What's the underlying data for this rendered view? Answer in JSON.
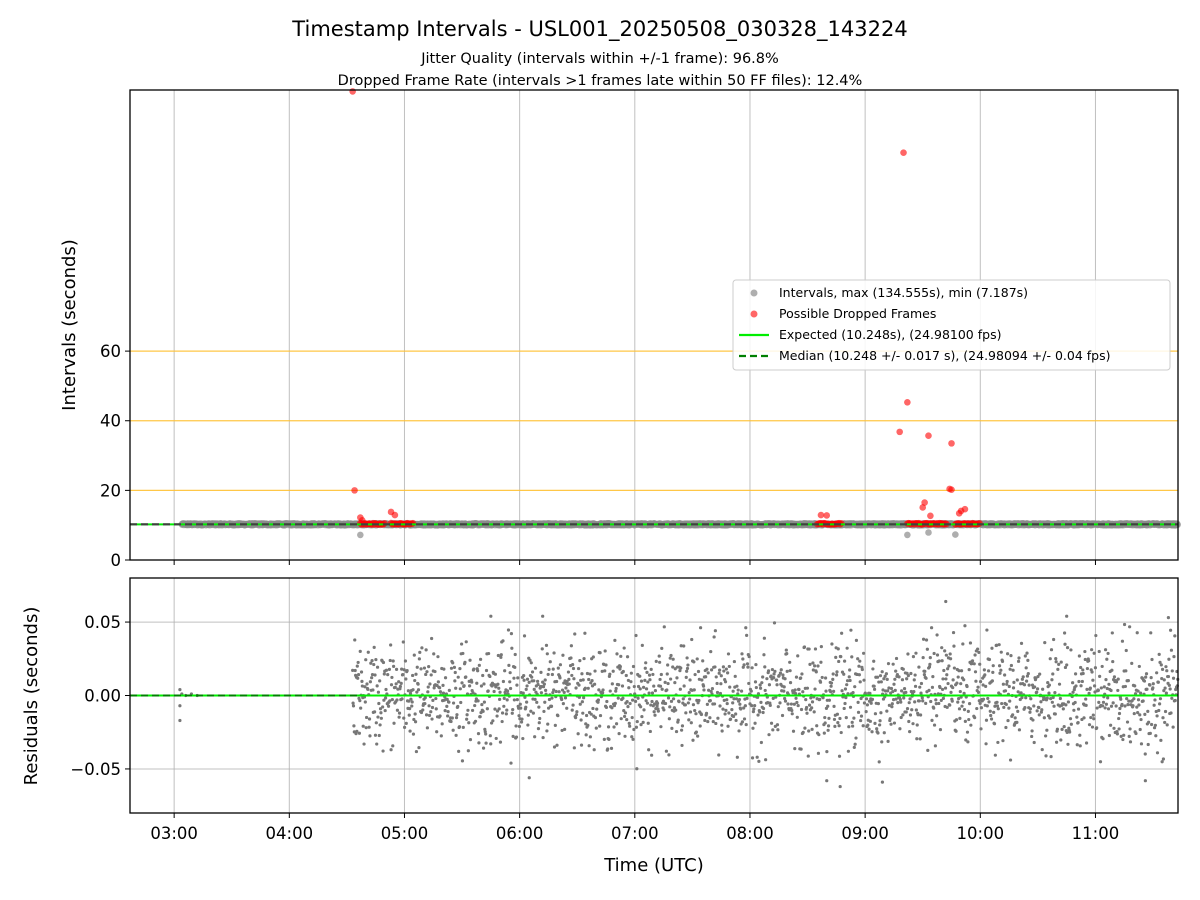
{
  "page": {
    "title": "Timestamp Intervals - USL001_20250508_030328_143224",
    "subtitle_line1": "Jitter Quality (intervals within +/-1 frame): 96.8%",
    "subtitle_line2": "Dropped Frame Rate (intervals >1 frames late within 50 FF files): 12.4%"
  },
  "colors": {
    "intervals": "#8c8c8c",
    "dropped": "#ff0000",
    "expected": "#00ee00",
    "median": "#008000",
    "threshold": "#ffc133",
    "grid": "#b0b0b0",
    "residuals": "#777777"
  },
  "chart_data": [
    {
      "type": "scatter",
      "xlabel": "",
      "ylabel": "Intervals (seconds)",
      "xlim": [
        "02:37",
        "11:43"
      ],
      "ylim": [
        0,
        135
      ],
      "yticks": [
        0,
        20,
        40,
        60
      ],
      "ytick_labels": [
        "0",
        "20",
        "40",
        "60"
      ],
      "grid": true,
      "legend_position": "center-right",
      "threshold_lines_y": [
        20,
        40,
        60
      ],
      "series": [
        {
          "name": "Intervals, max (134.555s), min (7.187s)",
          "kind": "scatter",
          "segments": [
            {
              "x_start": "03:04",
              "x_end": "11:43",
              "y": 10.248
            }
          ],
          "points": [
            {
              "x": "04:37",
              "y": 7.2
            },
            {
              "x": "09:22",
              "y": 7.2
            },
            {
              "x": "09:33",
              "y": 7.9
            },
            {
              "x": "09:47",
              "y": 7.3
            }
          ]
        },
        {
          "name": "Possible Dropped Frames",
          "kind": "scatter",
          "points": [
            {
              "x": "04:33",
              "y": 134.6
            },
            {
              "x": "04:34",
              "y": 20.0
            },
            {
              "x": "04:37",
              "y": 12.2
            },
            {
              "x": "04:38",
              "y": 11.4
            },
            {
              "x": "04:53",
              "y": 13.8
            },
            {
              "x": "04:55",
              "y": 12.9
            },
            {
              "x": "08:37",
              "y": 12.9
            },
            {
              "x": "08:40",
              "y": 12.8
            },
            {
              "x": "09:20",
              "y": 117.0
            },
            {
              "x": "09:18",
              "y": 36.8
            },
            {
              "x": "09:22",
              "y": 45.3
            },
            {
              "x": "09:30",
              "y": 15.1
            },
            {
              "x": "09:31",
              "y": 16.5
            },
            {
              "x": "09:33",
              "y": 35.7
            },
            {
              "x": "09:34",
              "y": 12.7
            },
            {
              "x": "09:44",
              "y": 20.4
            },
            {
              "x": "09:45",
              "y": 20.2
            },
            {
              "x": "09:45",
              "y": 33.5
            },
            {
              "x": "09:49",
              "y": 13.4
            },
            {
              "x": "09:50",
              "y": 14.1
            },
            {
              "x": "09:52",
              "y": 14.6
            }
          ],
          "baseline_clusters": [
            {
              "x_start": "04:37",
              "x_end": "04:50",
              "y": 10.4
            },
            {
              "x_start": "04:53",
              "x_end": "05:05",
              "y": 10.4
            },
            {
              "x_start": "08:35",
              "x_end": "08:48",
              "y": 10.4
            },
            {
              "x_start": "09:22",
              "x_end": "09:43",
              "y": 10.4
            },
            {
              "x_start": "09:47",
              "x_end": "10:00",
              "y": 10.4
            }
          ]
        },
        {
          "name": "Expected (10.248s), (24.98100 fps)",
          "kind": "hline",
          "y": 10.248
        },
        {
          "name": "Median (10.248 +/- 0.017 s), (24.98094 +/- 0.04 fps)",
          "kind": "hline-dashed",
          "y": 10.248
        }
      ]
    },
    {
      "type": "scatter",
      "xlabel": "Time (UTC)",
      "ylabel": "Residuals (seconds)",
      "xlim": [
        "02:37",
        "11:43"
      ],
      "ylim": [
        -0.08,
        0.08
      ],
      "yticks": [
        -0.05,
        0.0,
        0.05
      ],
      "ytick_labels": [
        "−0.05",
        "0.00",
        "0.05"
      ],
      "xticks": [
        "03:00",
        "04:00",
        "05:00",
        "06:00",
        "07:00",
        "08:00",
        "09:00",
        "10:00",
        "11:00"
      ],
      "grid": true,
      "zero_line": 0,
      "series": [
        {
          "kind": "scatter",
          "description_points": [
            {
              "x": "03:03",
              "y": 0.004
            },
            {
              "x": "03:03",
              "y": -0.007
            },
            {
              "x": "03:03",
              "y": -0.017
            },
            {
              "x": "03:04",
              "y": 0.001
            },
            {
              "x": "03:06",
              "y": 0.0
            },
            {
              "x": "03:09",
              "y": 0.001
            },
            {
              "x": "03:12",
              "y": 0.0
            }
          ],
          "dense_band": {
            "x_start": "04:33",
            "x_end": "11:43",
            "y_min": -0.05,
            "y_max": 0.05
          },
          "outliers": [
            {
              "x": "05:45",
              "y": 0.054
            },
            {
              "x": "06:12",
              "y": 0.054
            },
            {
              "x": "06:05",
              "y": -0.056
            },
            {
              "x": "08:40",
              "y": -0.058
            },
            {
              "x": "08:47",
              "y": -0.062
            },
            {
              "x": "09:09",
              "y": -0.059
            },
            {
              "x": "09:42",
              "y": 0.064
            },
            {
              "x": "10:45",
              "y": 0.054
            },
            {
              "x": "11:26",
              "y": -0.058
            },
            {
              "x": "11:38",
              "y": 0.053
            }
          ]
        }
      ]
    }
  ]
}
